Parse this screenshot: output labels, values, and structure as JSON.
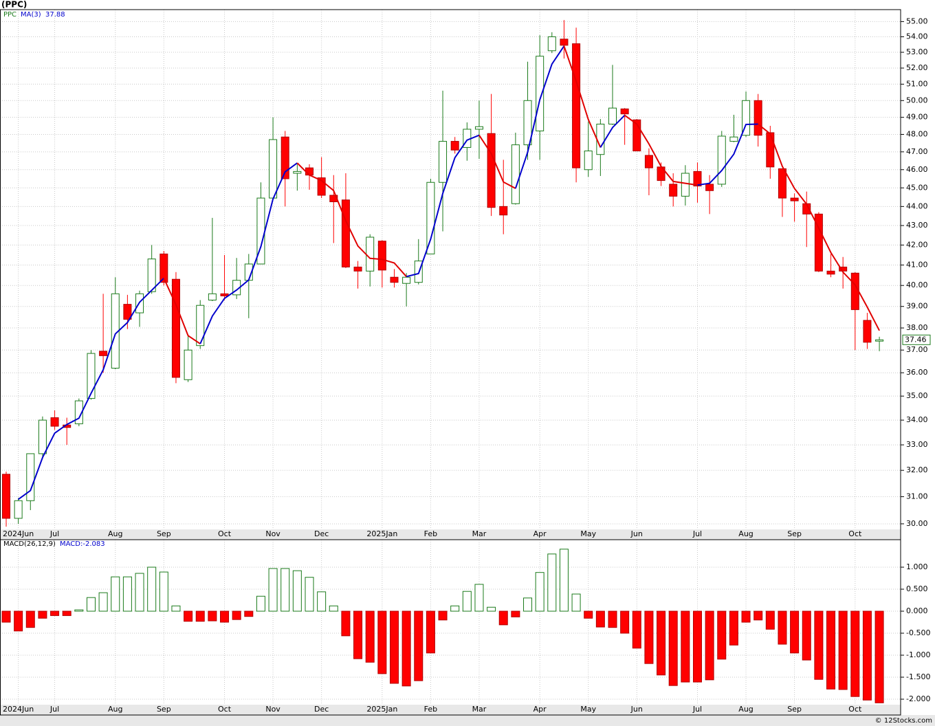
{
  "chart_data": [
    {
      "type": "candlestick",
      "title": "(PPC)",
      "name": "PPC",
      "log": true,
      "grid": true,
      "up_color": "#1a7a1a",
      "down_color": "#ff0000",
      "categories": [
        null,
        "2024Jun",
        null,
        null,
        "Jul",
        null,
        null,
        null,
        null,
        "Aug",
        null,
        null,
        null,
        "Sep",
        null,
        null,
        null,
        null,
        "Oct",
        null,
        null,
        null,
        "Nov",
        null,
        null,
        null,
        "Dec",
        null,
        null,
        null,
        null,
        "2025Jan",
        null,
        null,
        null,
        "Feb",
        null,
        null,
        null,
        "Mar",
        null,
        null,
        null,
        null,
        "Apr",
        null,
        null,
        null,
        "May",
        null,
        null,
        null,
        "Jun",
        null,
        null,
        null,
        null,
        "Jul",
        null,
        null,
        null,
        "Aug",
        null,
        null,
        null,
        "Sep",
        null,
        null,
        null,
        null,
        "Oct",
        null,
        null
      ],
      "open": [
        31.85,
        30.2,
        30.85,
        32.65,
        34.1,
        33.8,
        33.85,
        34.9,
        36.95,
        36.2,
        39.1,
        38.7,
        39.7,
        41.55,
        40.3,
        35.7,
        37.2,
        39.3,
        39.6,
        39.55,
        40.25,
        41.05,
        44.45,
        47.85,
        45.8,
        46.1,
        45.55,
        44.6,
        44.35,
        40.9,
        40.7,
        42.2,
        40.4,
        40.1,
        40.15,
        41.55,
        45.3,
        47.6,
        47.25,
        48.3,
        48.05,
        44.0,
        44.15,
        47.4,
        48.2,
        53.1,
        53.85,
        53.55,
        46.0,
        46.85,
        48.6,
        49.5,
        48.85,
        46.8,
        46.15,
        45.2,
        44.55,
        45.9,
        45.2,
        45.2,
        47.6,
        47.95,
        50.0,
        48.1,
        46.05,
        44.45,
        44.15,
        43.6,
        40.7,
        40.9,
        40.6,
        38.35,
        37.4
      ],
      "high": [
        31.95,
        30.95,
        32.65,
        34.15,
        34.4,
        34.1,
        34.9,
        37.0,
        39.6,
        40.4,
        39.55,
        39.75,
        42.0,
        41.7,
        40.65,
        37.7,
        39.3,
        43.4,
        41.5,
        41.35,
        41.55,
        45.3,
        49.0,
        48.2,
        46.3,
        46.3,
        46.7,
        45.7,
        45.8,
        41.2,
        42.55,
        42.25,
        40.8,
        40.6,
        42.3,
        45.5,
        50.6,
        47.85,
        48.7,
        50.0,
        50.4,
        46.55,
        48.1,
        52.4,
        54.1,
        54.3,
        55.1,
        54.6,
        48.75,
        48.9,
        52.2,
        49.55,
        48.9,
        47.2,
        46.4,
        45.8,
        46.25,
        46.4,
        45.7,
        48.2,
        49.15,
        50.55,
        50.4,
        48.5,
        46.05,
        44.7,
        44.8,
        43.7,
        41.55,
        41.4,
        40.65,
        38.7,
        37.6
      ],
      "low": [
        29.9,
        30.0,
        30.5,
        32.5,
        33.6,
        33.0,
        33.75,
        34.85,
        36.0,
        36.15,
        37.95,
        38.05,
        39.6,
        40.0,
        35.55,
        35.6,
        37.05,
        39.25,
        39.3,
        39.35,
        38.45,
        41.05,
        44.45,
        44.0,
        44.85,
        44.9,
        44.45,
        42.1,
        40.85,
        39.85,
        39.95,
        39.9,
        39.9,
        39.0,
        40.05,
        41.55,
        42.7,
        46.9,
        46.5,
        46.6,
        43.5,
        42.55,
        44.1,
        46.55,
        46.55,
        52.95,
        52.6,
        45.3,
        45.6,
        45.65,
        48.55,
        47.4,
        47.05,
        44.6,
        45.1,
        44.0,
        44.05,
        44.2,
        43.6,
        45.05,
        47.55,
        47.85,
        47.3,
        45.5,
        43.45,
        43.2,
        41.9,
        40.65,
        40.4,
        39.85,
        37.0,
        37.05,
        36.95
      ],
      "close": [
        30.2,
        30.85,
        32.65,
        34.0,
        33.75,
        33.7,
        34.8,
        36.85,
        36.75,
        39.6,
        38.4,
        39.6,
        41.3,
        40.15,
        35.8,
        37.0,
        39.05,
        39.6,
        39.5,
        40.25,
        41.05,
        44.45,
        47.7,
        45.5,
        45.9,
        45.7,
        44.6,
        44.25,
        40.9,
        40.7,
        42.4,
        40.75,
        40.15,
        40.4,
        41.2,
        45.3,
        47.6,
        47.1,
        48.3,
        48.45,
        43.95,
        43.55,
        47.4,
        50.0,
        52.75,
        54.0,
        53.45,
        46.1,
        47.05,
        48.6,
        49.55,
        49.2,
        47.05,
        46.1,
        45.4,
        44.55,
        45.8,
        45.1,
        44.85,
        47.9,
        47.85,
        50.0,
        47.95,
        46.15,
        44.45,
        44.3,
        43.6,
        40.7,
        40.55,
        40.7,
        38.85,
        37.35,
        37.46
      ],
      "ma": {
        "name": "MA(3)",
        "up_color": "#0000cc",
        "down_color": "#e00000",
        "values": [
          null,
          30.9,
          31.23,
          32.5,
          33.47,
          33.82,
          34.08,
          35.12,
          36.13,
          37.73,
          38.25,
          39.2,
          39.77,
          40.35,
          39.08,
          37.65,
          37.28,
          38.55,
          39.38,
          39.78,
          40.27,
          41.92,
          44.4,
          45.88,
          46.37,
          45.7,
          45.4,
          44.85,
          43.25,
          41.95,
          41.33,
          41.28,
          41.1,
          40.43,
          40.58,
          42.3,
          44.7,
          46.67,
          47.67,
          47.95,
          46.9,
          45.32,
          44.97,
          46.98,
          50.05,
          52.25,
          53.4,
          51.18,
          48.87,
          47.25,
          48.4,
          49.12,
          48.6,
          47.45,
          46.18,
          45.35,
          45.25,
          45.15,
          45.25,
          45.95,
          46.87,
          48.58,
          48.6,
          48.03,
          46.18,
          44.97,
          44.12,
          42.87,
          41.62,
          40.65,
          40.03,
          38.97,
          37.88
        ]
      },
      "ylim": [
        29.8,
        55.8
      ],
      "yticks": [
        {
          "value": 30,
          "label": "30.00"
        },
        {
          "value": 31,
          "label": "31.00"
        },
        {
          "value": 32,
          "label": "32.00"
        },
        {
          "value": 33,
          "label": "33.00"
        },
        {
          "value": 34,
          "label": "34.00"
        },
        {
          "value": 35,
          "label": "35.00"
        },
        {
          "value": 36,
          "label": "36.00"
        },
        {
          "value": 37,
          "label": "37.00"
        },
        {
          "value": 38,
          "label": "38.00"
        },
        {
          "value": 39,
          "label": "39.00"
        },
        {
          "value": 40,
          "label": "40.00"
        },
        {
          "value": 41,
          "label": "41.00"
        },
        {
          "value": 42,
          "label": "42.00"
        },
        {
          "value": 43,
          "label": "43.00"
        },
        {
          "value": 44,
          "label": "44.00"
        },
        {
          "value": 45,
          "label": "45.00"
        },
        {
          "value": 46,
          "label": "46.00"
        },
        {
          "value": 47,
          "label": "47.00"
        },
        {
          "value": 48,
          "label": "48.00"
        },
        {
          "value": 49,
          "label": "49.00"
        },
        {
          "value": 50,
          "label": "50.00"
        },
        {
          "value": 51,
          "label": "51.00"
        },
        {
          "value": 52,
          "label": "52.00"
        },
        {
          "value": 53,
          "label": "53.00"
        },
        {
          "value": 54,
          "label": "54.00"
        },
        {
          "value": 55,
          "label": "55.00"
        }
      ]
    },
    {
      "type": "bar",
      "name": "MACD(26,12,9)",
      "legend_value": "MACD:-2.083",
      "up_color": "#1a7a1a",
      "down_color": "#ff0000",
      "values": [
        -0.25,
        -0.45,
        -0.37,
        -0.16,
        -0.1,
        -0.1,
        0.03,
        0.31,
        0.42,
        0.78,
        0.78,
        0.86,
        1.0,
        0.89,
        0.12,
        -0.23,
        -0.23,
        -0.22,
        -0.25,
        -0.19,
        -0.12,
        0.34,
        0.97,
        0.97,
        0.92,
        0.77,
        0.44,
        0.12,
        -0.56,
        -1.08,
        -1.16,
        -1.42,
        -1.64,
        -1.7,
        -1.58,
        -0.95,
        -0.2,
        0.12,
        0.45,
        0.61,
        0.09,
        -0.31,
        -0.13,
        0.3,
        0.88,
        1.3,
        1.41,
        0.39,
        -0.16,
        -0.36,
        -0.37,
        -0.5,
        -0.84,
        -1.19,
        -1.45,
        -1.69,
        -1.61,
        -1.61,
        -1.56,
        -1.09,
        -0.77,
        -0.25,
        -0.2,
        -0.41,
        -0.75,
        -0.95,
        -1.11,
        -1.55,
        -1.77,
        -1.78,
        -1.94,
        -2.02,
        -2.083
      ],
      "ylim": [
        -2.125,
        1.625
      ],
      "yticks": [
        {
          "value": -2,
          "label": "-2.000"
        },
        {
          "value": -1.5,
          "label": "-1.500"
        },
        {
          "value": -1,
          "label": "-1.000"
        },
        {
          "value": -0.5,
          "label": "-0.500"
        },
        {
          "value": 0,
          "label": "0.000"
        },
        {
          "value": 0.5,
          "label": "0.500"
        },
        {
          "value": 1,
          "label": "1.000"
        }
      ]
    }
  ],
  "footer": "© 12Stocks.com"
}
